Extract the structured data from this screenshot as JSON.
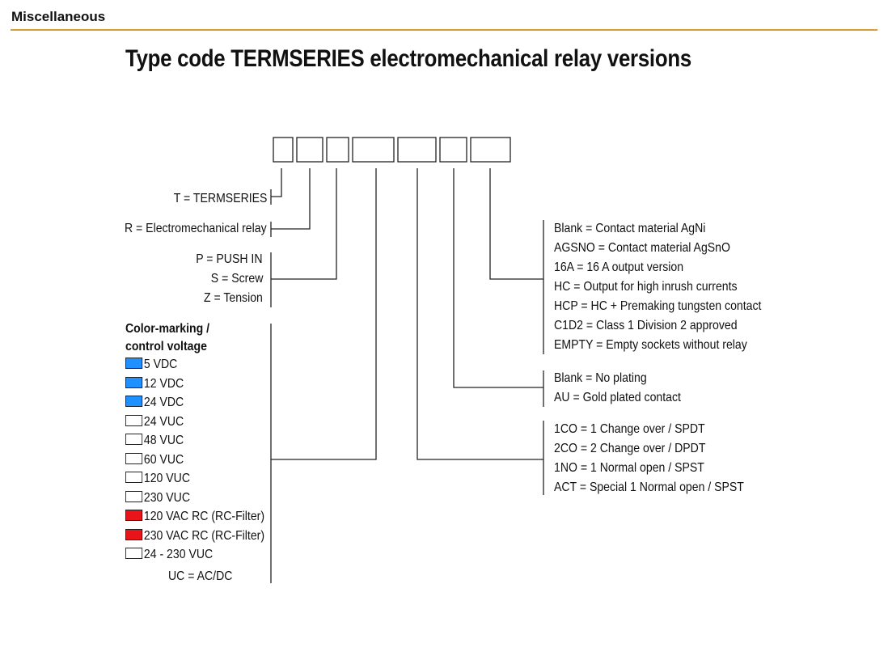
{
  "header": "Miscellaneous",
  "title": "Type code TERMSERIES electromechanical relay versions",
  "left": {
    "series": "T = TERMSERIES",
    "type": "R = Electromechanical relay",
    "connection": [
      "P = PUSH IN",
      "S = Screw",
      "Z = Tension"
    ],
    "voltage_heading": [
      "Color-marking /",
      "control voltage"
    ],
    "voltages": [
      {
        "label": "5 VDC",
        "color": "#1e90ff"
      },
      {
        "label": "12 VDC",
        "color": "#1e90ff"
      },
      {
        "label": "24 VDC",
        "color": "#1e90ff"
      },
      {
        "label": "24 VUC",
        "color": "#ffffff"
      },
      {
        "label": "48 VUC",
        "color": "#ffffff"
      },
      {
        "label": "60 VUC",
        "color": "#ffffff"
      },
      {
        "label": "120 VUC",
        "color": "#ffffff"
      },
      {
        "label": "230 VUC",
        "color": "#ffffff"
      },
      {
        "label": "120 VAC RC (RC-Filter)",
        "color": "#e8141a"
      },
      {
        "label": "230 VAC RC (RC-Filter)",
        "color": "#e8141a"
      },
      {
        "label": "24 - 230 VUC",
        "color": "#ffffff"
      }
    ],
    "note": "UC = AC/DC"
  },
  "right": {
    "contact_material": [
      "Blank = Contact material AgNi",
      "AGSNO = Contact material AgSnO",
      "16A = 16 A output version",
      "HC = Output for high inrush currents",
      "HCP = HC + Premaking tungsten contact",
      "C1D2 = Class 1 Division 2 approved",
      "EMPTY = Empty sockets without relay"
    ],
    "plating": [
      "Blank = No plating",
      "AU = Gold plated contact"
    ],
    "contacts": [
      "1CO = 1 Change over / SPDT",
      "2CO = 2 Change over / DPDT",
      "1NO = 1 Normal open / SPST",
      "ACT = Special 1 Normal open / SPST"
    ]
  }
}
